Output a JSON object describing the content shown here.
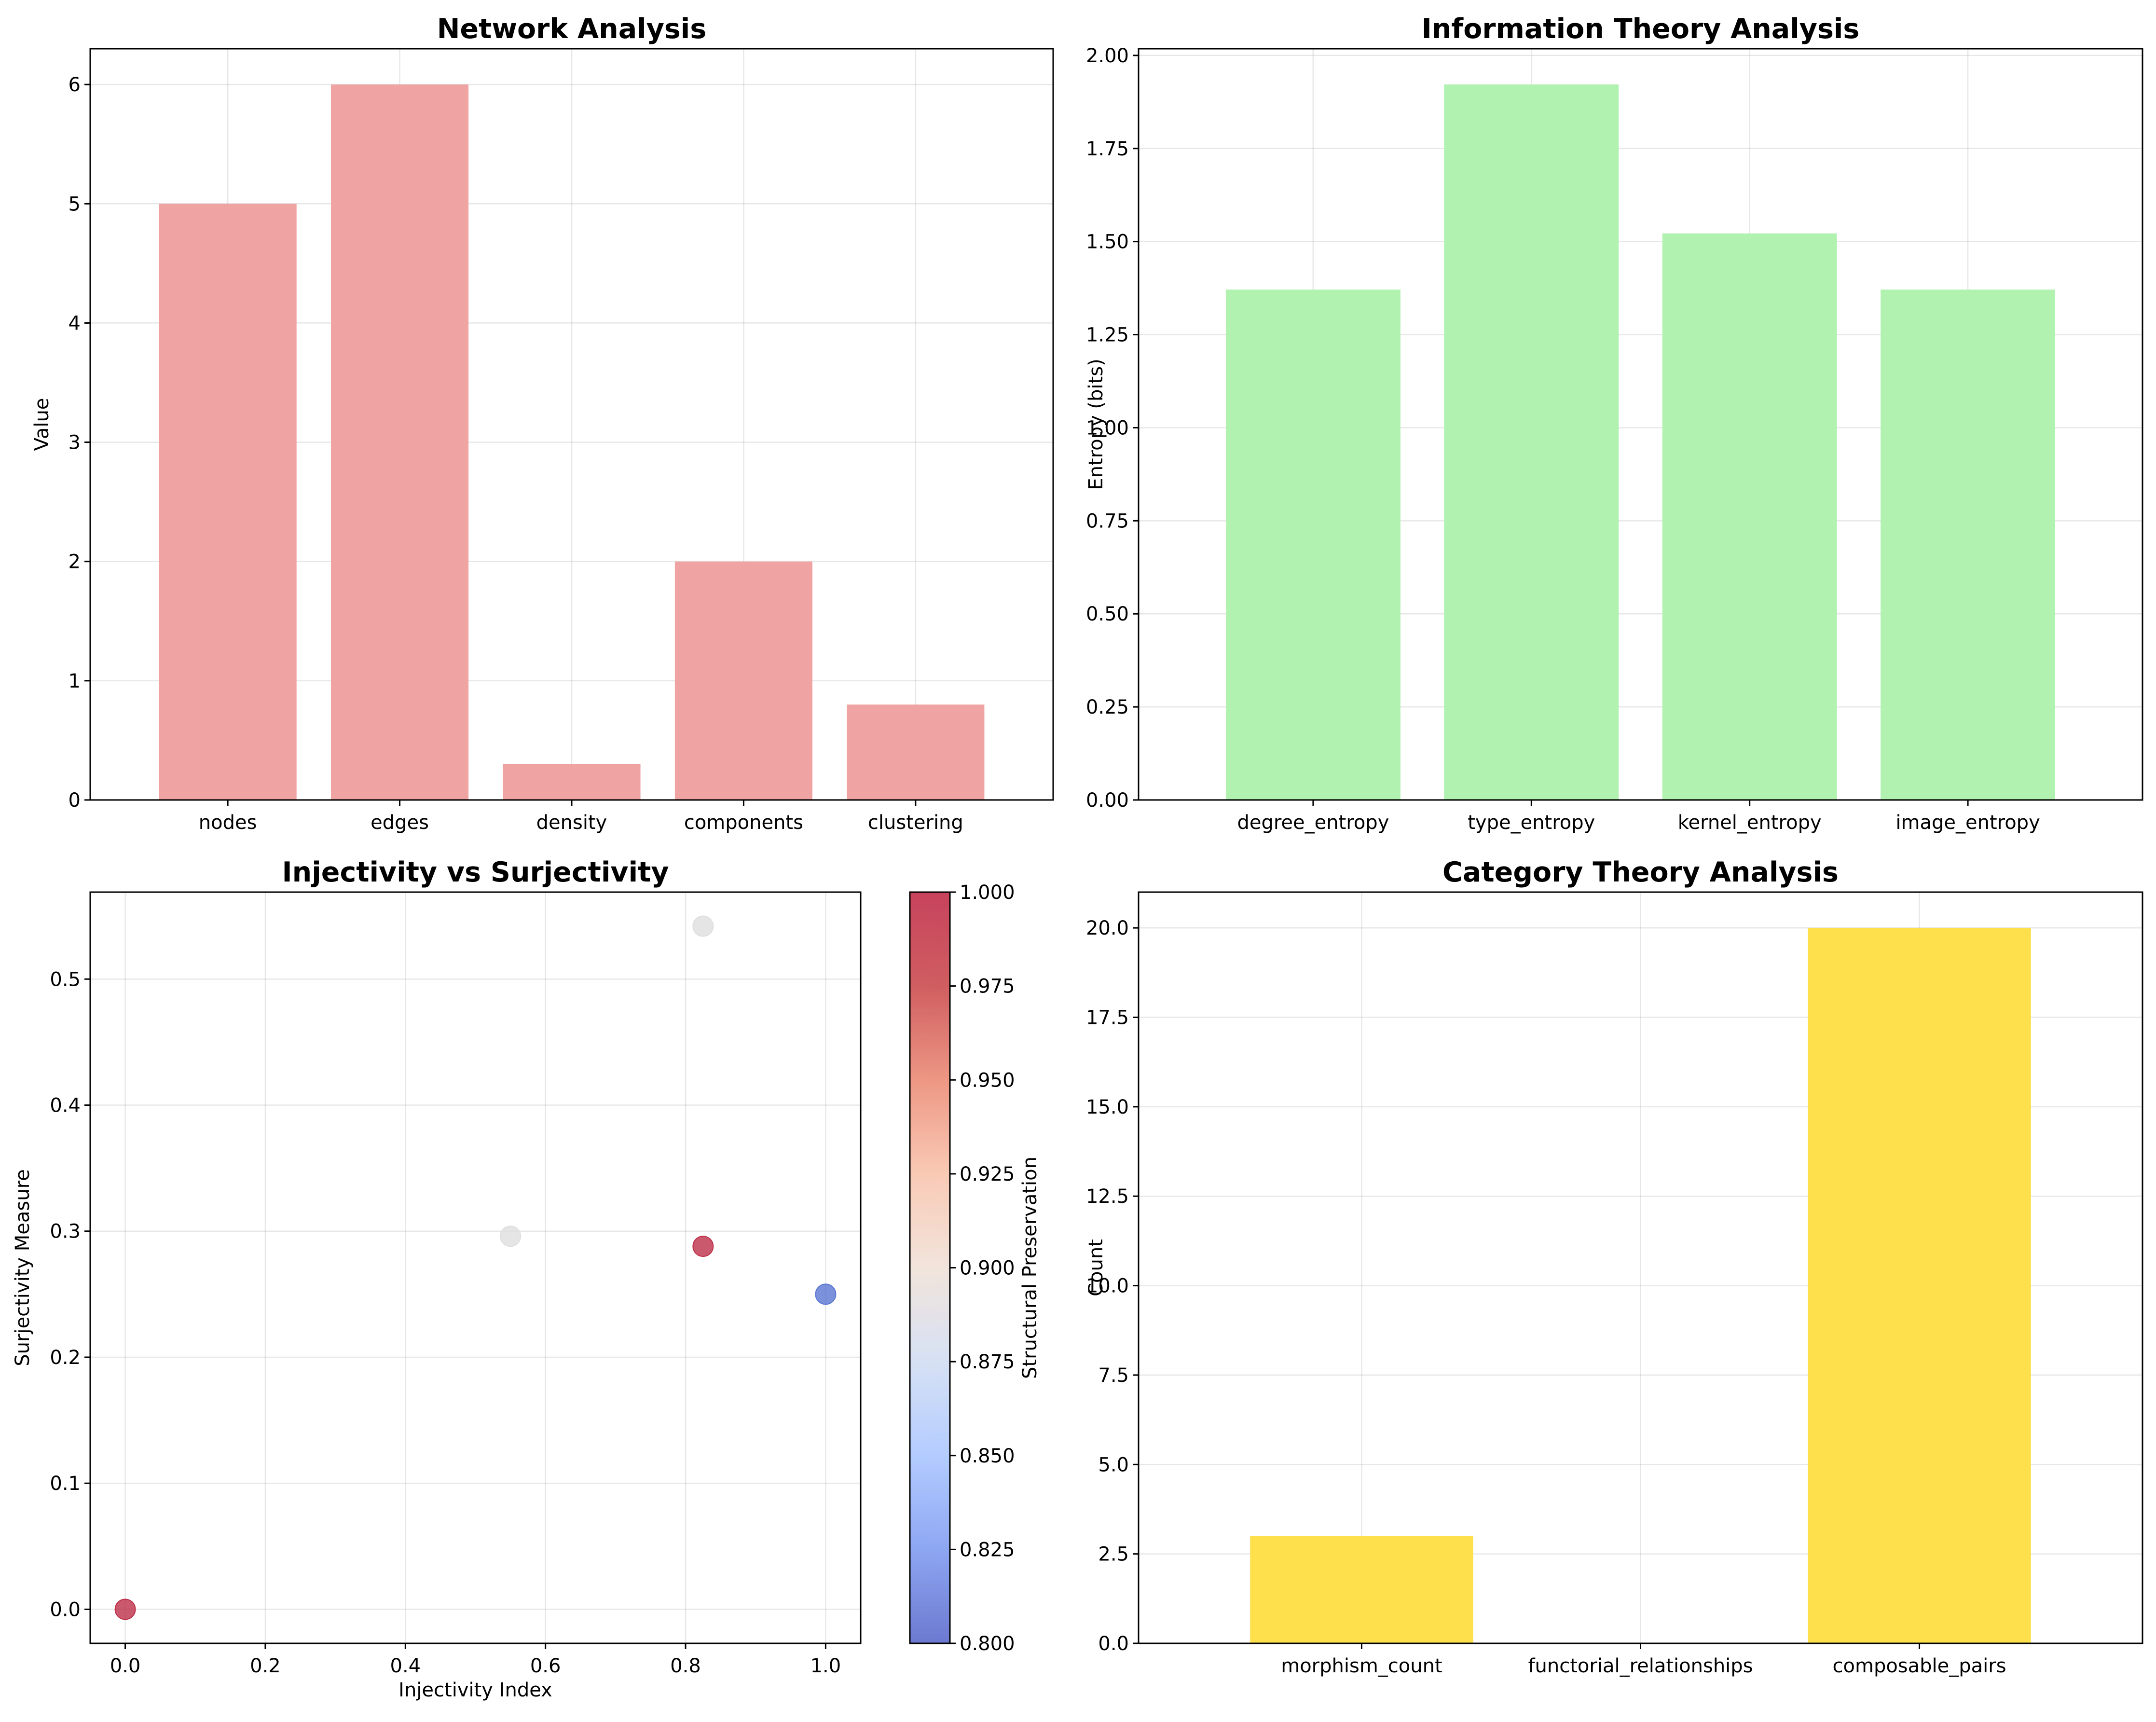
{
  "chart_data": [
    {
      "type": "bar",
      "title": "Network Analysis",
      "xlabel": "",
      "ylabel": "Value",
      "categories": [
        "nodes",
        "edges",
        "density",
        "components",
        "clustering"
      ],
      "values": [
        5,
        6,
        0.3,
        2,
        0.8
      ],
      "ylim": [
        0,
        6.3
      ],
      "yticks": [
        0,
        1,
        2,
        3,
        4,
        5,
        6
      ],
      "ytick_labels": [
        "0",
        "1",
        "2",
        "3",
        "4",
        "5",
        "6"
      ],
      "color": "#f0a3a3",
      "grid": true
    },
    {
      "type": "bar",
      "title": "Information Theory Analysis",
      "xlabel": "",
      "ylabel": "Entropy (bits)",
      "categories": [
        "degree_entropy",
        "type_entropy",
        "kernel_entropy",
        "image_entropy"
      ],
      "values": [
        1.371,
        1.922,
        1.522,
        1.371
      ],
      "ylim": [
        0,
        2.018
      ],
      "yticks": [
        0,
        0.25,
        0.5,
        0.75,
        1.0,
        1.25,
        1.5,
        1.75,
        2.0
      ],
      "ytick_labels": [
        "0.00",
        "0.25",
        "0.50",
        "0.75",
        "1.00",
        "1.25",
        "1.50",
        "1.75",
        "2.00"
      ],
      "color": "#b2f2b0",
      "grid": true
    },
    {
      "type": "scatter",
      "title": "Injectivity vs Surjectivity",
      "xlabel": "Injectivity Index",
      "ylabel": "Surjectivity Measure",
      "points": [
        {
          "x": 0.0,
          "y": 0.0,
          "c": 1.0,
          "color": "#be2f48"
        },
        {
          "x": 0.55,
          "y": 0.296,
          "c": 0.9,
          "color": "#dedede"
        },
        {
          "x": 0.825,
          "y": 0.542,
          "c": 0.9,
          "color": "#dedede"
        },
        {
          "x": 0.825,
          "y": 0.288,
          "c": 1.0,
          "color": "#be2f48"
        },
        {
          "x": 1.0,
          "y": 0.25,
          "c": 0.8,
          "color": "#5a75d3"
        }
      ],
      "xlim": [
        -0.05,
        1.05
      ],
      "ylim": [
        -0.027,
        0.569
      ],
      "xticks": [
        0.0,
        0.2,
        0.4,
        0.6,
        0.8,
        1.0
      ],
      "xtick_labels": [
        "0.0",
        "0.2",
        "0.4",
        "0.6",
        "0.8",
        "1.0"
      ],
      "yticks": [
        0.0,
        0.1,
        0.2,
        0.3,
        0.4,
        0.5
      ],
      "ytick_labels": [
        "0.0",
        "0.1",
        "0.2",
        "0.3",
        "0.4",
        "0.5"
      ],
      "grid": true,
      "colorbar": {
        "label": "Structural Preservation",
        "range": [
          0.8,
          1.0
        ],
        "ticks": [
          0.8,
          0.825,
          0.85,
          0.875,
          0.9,
          0.925,
          0.95,
          0.975,
          1.0
        ],
        "tick_labels": [
          "0.800",
          "0.825",
          "0.850",
          "0.875",
          "0.900",
          "0.925",
          "0.950",
          "0.975",
          "1.000"
        ],
        "colormap": "coolwarm",
        "stops": [
          "#3b4cc0",
          "#6889ee",
          "#9abbff",
          "#c9d7f0",
          "#eddbd0",
          "#f7b89c",
          "#e7745b",
          "#c0282c",
          "#b40426"
        ]
      }
    },
    {
      "type": "bar",
      "title": "Category Theory Analysis",
      "xlabel": "",
      "ylabel": "Count",
      "categories": [
        "morphism_count",
        "functorial_relationships",
        "composable_pairs"
      ],
      "values": [
        3,
        0,
        20
      ],
      "ylim": [
        0,
        21
      ],
      "yticks": [
        0,
        2.5,
        5,
        7.5,
        10,
        12.5,
        15,
        17.5,
        20
      ],
      "ytick_labels": [
        "0.0",
        "2.5",
        "5.0",
        "7.5",
        "10.0",
        "12.5",
        "15.0",
        "17.5",
        "20.0"
      ],
      "color": "#fee04d",
      "grid": true
    }
  ]
}
